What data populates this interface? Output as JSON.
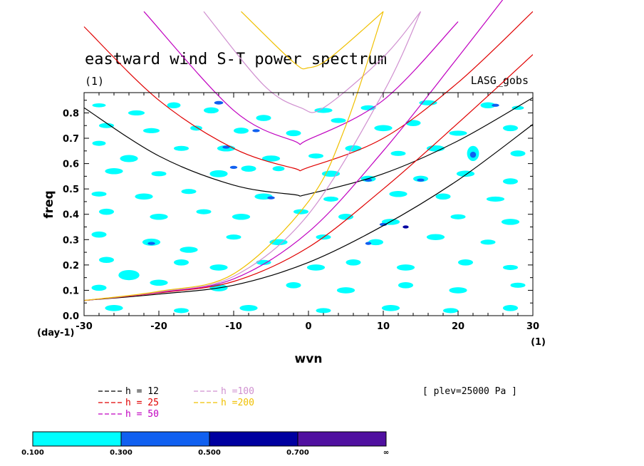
{
  "chart_data": {
    "type": "contour",
    "title": "eastward wind S-T power spectrum",
    "subtitle": "(1)",
    "source_label": "LASG_gobs",
    "level_label": "[ plev=25000 Pa ]",
    "xlabel": "wvn",
    "ylabel": "freq",
    "x_unit_label": "(1)",
    "y_unit_label": "(day-1)",
    "xlim": [
      -30,
      30
    ],
    "ylim": [
      0,
      0.88
    ],
    "x_ticks": [
      -30,
      -20,
      -10,
      0,
      10,
      20,
      30
    ],
    "y_ticks": [
      0.0,
      0.1,
      0.2,
      0.3,
      0.4,
      0.5,
      0.6,
      0.7,
      0.8
    ],
    "x_tick_labels": [
      "-30",
      "-20",
      "-10",
      "0",
      "10",
      "20",
      "30"
    ],
    "y_tick_labels": [
      "0.0",
      "0.1",
      "0.2",
      "0.3",
      "0.4",
      "0.5",
      "0.6",
      "0.7",
      "0.8"
    ],
    "dispersion_curves": [
      {
        "name": "h = 12",
        "h": 12,
        "color": "#000000",
        "points": {
          "kelvin": [
            [
              -30,
              0.06
            ],
            [
              -20,
              0.085
            ],
            [
              -10,
              0.12
            ],
            [
              0,
              0.21
            ],
            [
              10,
              0.355
            ],
            [
              20,
              0.535
            ],
            [
              30,
              0.755
            ]
          ],
          "wig": [
            [
              -30,
              0.82
            ],
            [
              -20,
              0.63
            ],
            [
              -10,
              0.515
            ],
            [
              -2,
              0.478
            ],
            [
              0,
              0.48
            ],
            [
              10,
              0.56
            ],
            [
              20,
              0.69
            ],
            [
              30,
              0.86
            ]
          ]
        }
      },
      {
        "name": "h = 25",
        "h": 25,
        "color": "#e00000",
        "points": {
          "kelvin": [
            [
              -30,
              0.06
            ],
            [
              -20,
              0.09
            ],
            [
              -10,
              0.135
            ],
            [
              0,
              0.27
            ],
            [
              10,
              0.5
            ],
            [
              20,
              0.76
            ],
            [
              30,
              1.03
            ]
          ],
          "wig": [
            [
              -30,
              1.14
            ],
            [
              -20,
              0.85
            ],
            [
              -10,
              0.66
            ],
            [
              -2,
              0.582
            ],
            [
              0,
              0.585
            ],
            [
              10,
              0.7
            ],
            [
              20,
              0.92
            ],
            [
              30,
              1.2
            ]
          ]
        }
      },
      {
        "name": "h = 50",
        "h": 50,
        "color": "#c000c0",
        "points": {
          "kelvin": [
            [
              -30,
              0.06
            ],
            [
              -20,
              0.092
            ],
            [
              -10,
              0.145
            ],
            [
              0,
              0.33
            ],
            [
              10,
              0.65
            ],
            [
              20,
              1.02
            ],
            [
              30,
              1.4
            ]
          ],
          "wig": [
            [
              -22,
              1.2
            ],
            [
              -10,
              0.81
            ],
            [
              -2,
              0.69
            ],
            [
              0,
              0.695
            ],
            [
              10,
              0.85
            ],
            [
              20,
              1.16
            ]
          ]
        }
      },
      {
        "name": "h =100",
        "h": 100,
        "color": "#d090d0",
        "points": {
          "kelvin": [
            [
              -30,
              0.06
            ],
            [
              -20,
              0.094
            ],
            [
              -10,
              0.155
            ],
            [
              0,
              0.4
            ],
            [
              10,
              0.88
            ],
            [
              15,
              1.2
            ]
          ],
          "wig": [
            [
              -14,
              1.2
            ],
            [
              -6,
              0.91
            ],
            [
              -1,
              0.82
            ],
            [
              2,
              0.82
            ],
            [
              10,
              1.02
            ],
            [
              15,
              1.2
            ]
          ]
        }
      },
      {
        "name": "h =200",
        "h": 200,
        "color": "#f0c000",
        "points": {
          "kelvin": [
            [
              -30,
              0.06
            ],
            [
              -20,
              0.096
            ],
            [
              -10,
              0.165
            ],
            [
              0,
              0.45
            ],
            [
              5,
              0.75
            ],
            [
              10,
              1.2
            ]
          ],
          "wig": [
            [
              -9,
              1.2
            ],
            [
              -2,
              1.0
            ],
            [
              0,
              0.978
            ],
            [
              3,
              1.02
            ],
            [
              10,
              1.2
            ]
          ]
        }
      }
    ],
    "legend": [
      {
        "label": "h = 12",
        "color": "#000000"
      },
      {
        "label": "h = 25",
        "color": "#e00000"
      },
      {
        "label": "h = 50",
        "color": "#c000c0"
      },
      {
        "label": "h =100",
        "color": "#d090d0"
      },
      {
        "label": "h =200",
        "color": "#f0c000"
      }
    ],
    "contour_levels": [
      {
        "from": "0.100",
        "to": "0.300",
        "color": "#00ffff"
      },
      {
        "from": "0.300",
        "to": "0.500",
        "color": "#1060f0"
      },
      {
        "from": "0.500",
        "to": "0.700",
        "color": "#0000a0"
      },
      {
        "from": "0.700",
        "to": "∞",
        "color": "#5010a0"
      }
    ],
    "colorbar_labels": [
      "0.100",
      "0.300",
      "0.500",
      "0.700",
      "∞"
    ],
    "patches": [
      {
        "x": -28,
        "y": 0.83,
        "a": 0.9,
        "b": 0.008,
        "l": 0
      },
      {
        "x": -23,
        "y": 0.8,
        "a": 1.1,
        "b": 0.01,
        "l": 0
      },
      {
        "x": -18,
        "y": 0.83,
        "a": 0.9,
        "b": 0.012,
        "l": 0
      },
      {
        "x": -13,
        "y": 0.81,
        "a": 1.0,
        "b": 0.012,
        "l": 0
      },
      {
        "x": -12,
        "y": 0.84,
        "a": 0.6,
        "b": 0.007,
        "l": 1
      },
      {
        "x": -6,
        "y": 0.78,
        "a": 1.0,
        "b": 0.012,
        "l": 0
      },
      {
        "x": 2,
        "y": 0.81,
        "a": 1.2,
        "b": 0.01,
        "l": 0
      },
      {
        "x": 8,
        "y": 0.82,
        "a": 1.0,
        "b": 0.01,
        "l": 0
      },
      {
        "x": 16,
        "y": 0.84,
        "a": 1.2,
        "b": 0.01,
        "l": 0
      },
      {
        "x": 24,
        "y": 0.83,
        "a": 1.0,
        "b": 0.012,
        "l": 0
      },
      {
        "x": 25,
        "y": 0.83,
        "a": 0.5,
        "b": 0.006,
        "l": 1
      },
      {
        "x": 28,
        "y": 0.82,
        "a": 0.8,
        "b": 0.008,
        "l": 0
      },
      {
        "x": -27,
        "y": 0.75,
        "a": 1.0,
        "b": 0.01,
        "l": 0
      },
      {
        "x": -21,
        "y": 0.73,
        "a": 1.1,
        "b": 0.01,
        "l": 0
      },
      {
        "x": -15,
        "y": 0.74,
        "a": 0.8,
        "b": 0.01,
        "l": 0
      },
      {
        "x": -9,
        "y": 0.73,
        "a": 1.0,
        "b": 0.012,
        "l": 0
      },
      {
        "x": -7,
        "y": 0.73,
        "a": 0.5,
        "b": 0.006,
        "l": 1
      },
      {
        "x": -2,
        "y": 0.72,
        "a": 1.0,
        "b": 0.012,
        "l": 0
      },
      {
        "x": 4,
        "y": 0.77,
        "a": 1.0,
        "b": 0.01,
        "l": 0
      },
      {
        "x": 10,
        "y": 0.74,
        "a": 1.2,
        "b": 0.012,
        "l": 0
      },
      {
        "x": 14,
        "y": 0.76,
        "a": 1.0,
        "b": 0.012,
        "l": 0
      },
      {
        "x": 20,
        "y": 0.72,
        "a": 1.2,
        "b": 0.01,
        "l": 0
      },
      {
        "x": 27,
        "y": 0.74,
        "a": 1.0,
        "b": 0.012,
        "l": 0
      },
      {
        "x": -28,
        "y": 0.68,
        "a": 0.9,
        "b": 0.01,
        "l": 0
      },
      {
        "x": -24,
        "y": 0.62,
        "a": 1.2,
        "b": 0.014,
        "l": 0
      },
      {
        "x": -17,
        "y": 0.66,
        "a": 1.0,
        "b": 0.01,
        "l": 0
      },
      {
        "x": -11,
        "y": 0.66,
        "a": 1.2,
        "b": 0.012,
        "l": 0
      },
      {
        "x": -11,
        "y": 0.665,
        "a": 0.5,
        "b": 0.006,
        "l": 1
      },
      {
        "x": -5,
        "y": 0.62,
        "a": 1.2,
        "b": 0.012,
        "l": 0
      },
      {
        "x": 1,
        "y": 0.63,
        "a": 1.0,
        "b": 0.01,
        "l": 0
      },
      {
        "x": 6,
        "y": 0.66,
        "a": 1.1,
        "b": 0.012,
        "l": 0
      },
      {
        "x": 12,
        "y": 0.64,
        "a": 1.0,
        "b": 0.01,
        "l": 0
      },
      {
        "x": 17,
        "y": 0.66,
        "a": 1.2,
        "b": 0.012,
        "l": 0
      },
      {
        "x": 22,
        "y": 0.64,
        "a": 0.8,
        "b": 0.03,
        "l": 0
      },
      {
        "x": 22,
        "y": 0.635,
        "a": 0.4,
        "b": 0.012,
        "l": 1
      },
      {
        "x": 28,
        "y": 0.64,
        "a": 1.0,
        "b": 0.012,
        "l": 0
      },
      {
        "x": -26,
        "y": 0.57,
        "a": 1.2,
        "b": 0.012,
        "l": 0
      },
      {
        "x": -20,
        "y": 0.56,
        "a": 1.0,
        "b": 0.01,
        "l": 0
      },
      {
        "x": -12,
        "y": 0.56,
        "a": 1.2,
        "b": 0.014,
        "l": 0
      },
      {
        "x": -10,
        "y": 0.585,
        "a": 0.5,
        "b": 0.006,
        "l": 1
      },
      {
        "x": -8,
        "y": 0.58,
        "a": 1.0,
        "b": 0.012,
        "l": 0
      },
      {
        "x": -4,
        "y": 0.58,
        "a": 0.8,
        "b": 0.01,
        "l": 0
      },
      {
        "x": 3,
        "y": 0.56,
        "a": 1.2,
        "b": 0.012,
        "l": 0
      },
      {
        "x": 8,
        "y": 0.54,
        "a": 1.0,
        "b": 0.012,
        "l": 0
      },
      {
        "x": 8,
        "y": 0.535,
        "a": 0.5,
        "b": 0.006,
        "l": 1
      },
      {
        "x": 15,
        "y": 0.54,
        "a": 1.0,
        "b": 0.012,
        "l": 0
      },
      {
        "x": 15,
        "y": 0.535,
        "a": 0.5,
        "b": 0.006,
        "l": 1
      },
      {
        "x": 21,
        "y": 0.56,
        "a": 1.2,
        "b": 0.012,
        "l": 0
      },
      {
        "x": 27,
        "y": 0.53,
        "a": 1.0,
        "b": 0.012,
        "l": 0
      },
      {
        "x": -28,
        "y": 0.48,
        "a": 1.0,
        "b": 0.01,
        "l": 0
      },
      {
        "x": -22,
        "y": 0.47,
        "a": 1.2,
        "b": 0.012,
        "l": 0
      },
      {
        "x": -16,
        "y": 0.49,
        "a": 1.0,
        "b": 0.01,
        "l": 0
      },
      {
        "x": -6,
        "y": 0.47,
        "a": 1.2,
        "b": 0.012,
        "l": 0
      },
      {
        "x": -5,
        "y": 0.465,
        "a": 0.5,
        "b": 0.006,
        "l": 1
      },
      {
        "x": 3,
        "y": 0.46,
        "a": 1.0,
        "b": 0.01,
        "l": 0
      },
      {
        "x": 12,
        "y": 0.48,
        "a": 1.2,
        "b": 0.012,
        "l": 0
      },
      {
        "x": 18,
        "y": 0.47,
        "a": 1.0,
        "b": 0.012,
        "l": 0
      },
      {
        "x": 25,
        "y": 0.46,
        "a": 1.2,
        "b": 0.01,
        "l": 0
      },
      {
        "x": -27,
        "y": 0.41,
        "a": 1.0,
        "b": 0.012,
        "l": 0
      },
      {
        "x": -20,
        "y": 0.39,
        "a": 1.2,
        "b": 0.012,
        "l": 0
      },
      {
        "x": -14,
        "y": 0.41,
        "a": 1.0,
        "b": 0.01,
        "l": 0
      },
      {
        "x": -9,
        "y": 0.39,
        "a": 1.2,
        "b": 0.012,
        "l": 0
      },
      {
        "x": -1,
        "y": 0.41,
        "a": 1.0,
        "b": 0.01,
        "l": 0
      },
      {
        "x": 5,
        "y": 0.39,
        "a": 1.0,
        "b": 0.012,
        "l": 0
      },
      {
        "x": 11,
        "y": 0.37,
        "a": 1.2,
        "b": 0.012,
        "l": 0
      },
      {
        "x": 10,
        "y": 0.36,
        "a": 0.5,
        "b": 0.006,
        "l": 1
      },
      {
        "x": 13,
        "y": 0.35,
        "a": 0.4,
        "b": 0.006,
        "l": 2
      },
      {
        "x": 20,
        "y": 0.39,
        "a": 1.0,
        "b": 0.01,
        "l": 0
      },
      {
        "x": 27,
        "y": 0.37,
        "a": 1.2,
        "b": 0.012,
        "l": 0
      },
      {
        "x": -28,
        "y": 0.32,
        "a": 1.0,
        "b": 0.012,
        "l": 0
      },
      {
        "x": -21,
        "y": 0.29,
        "a": 1.2,
        "b": 0.014,
        "l": 0
      },
      {
        "x": -21,
        "y": 0.285,
        "a": 0.5,
        "b": 0.006,
        "l": 1
      },
      {
        "x": -16,
        "y": 0.26,
        "a": 1.2,
        "b": 0.012,
        "l": 0
      },
      {
        "x": -10,
        "y": 0.31,
        "a": 1.0,
        "b": 0.01,
        "l": 0
      },
      {
        "x": -4,
        "y": 0.29,
        "a": 1.2,
        "b": 0.012,
        "l": 0
      },
      {
        "x": 2,
        "y": 0.31,
        "a": 1.0,
        "b": 0.01,
        "l": 0
      },
      {
        "x": 9,
        "y": 0.29,
        "a": 1.0,
        "b": 0.012,
        "l": 0
      },
      {
        "x": 8,
        "y": 0.285,
        "a": 0.4,
        "b": 0.006,
        "l": 1
      },
      {
        "x": 17,
        "y": 0.31,
        "a": 1.2,
        "b": 0.012,
        "l": 0
      },
      {
        "x": 24,
        "y": 0.29,
        "a": 1.0,
        "b": 0.01,
        "l": 0
      },
      {
        "x": -27,
        "y": 0.22,
        "a": 1.0,
        "b": 0.012,
        "l": 0
      },
      {
        "x": -24,
        "y": 0.16,
        "a": 1.4,
        "b": 0.02,
        "l": 0
      },
      {
        "x": -17,
        "y": 0.21,
        "a": 1.0,
        "b": 0.012,
        "l": 0
      },
      {
        "x": -12,
        "y": 0.19,
        "a": 1.2,
        "b": 0.012,
        "l": 0
      },
      {
        "x": -6,
        "y": 0.21,
        "a": 1.0,
        "b": 0.01,
        "l": 0
      },
      {
        "x": 1,
        "y": 0.19,
        "a": 1.2,
        "b": 0.012,
        "l": 0
      },
      {
        "x": 6,
        "y": 0.21,
        "a": 1.0,
        "b": 0.012,
        "l": 0
      },
      {
        "x": 13,
        "y": 0.19,
        "a": 1.2,
        "b": 0.012,
        "l": 0
      },
      {
        "x": 21,
        "y": 0.21,
        "a": 1.0,
        "b": 0.012,
        "l": 0
      },
      {
        "x": 27,
        "y": 0.19,
        "a": 1.0,
        "b": 0.01,
        "l": 0
      },
      {
        "x": -28,
        "y": 0.11,
        "a": 1.0,
        "b": 0.012,
        "l": 0
      },
      {
        "x": -20,
        "y": 0.13,
        "a": 1.2,
        "b": 0.012,
        "l": 0
      },
      {
        "x": -12,
        "y": 0.11,
        "a": 1.2,
        "b": 0.014,
        "l": 0
      },
      {
        "x": -2,
        "y": 0.12,
        "a": 1.0,
        "b": 0.012,
        "l": 0
      },
      {
        "x": 5,
        "y": 0.1,
        "a": 1.2,
        "b": 0.012,
        "l": 0
      },
      {
        "x": 13,
        "y": 0.12,
        "a": 1.0,
        "b": 0.012,
        "l": 0
      },
      {
        "x": 20,
        "y": 0.1,
        "a": 1.2,
        "b": 0.012,
        "l": 0
      },
      {
        "x": 28,
        "y": 0.12,
        "a": 1.0,
        "b": 0.01,
        "l": 0
      },
      {
        "x": -26,
        "y": 0.03,
        "a": 1.2,
        "b": 0.012,
        "l": 0
      },
      {
        "x": -17,
        "y": 0.02,
        "a": 1.0,
        "b": 0.01,
        "l": 0
      },
      {
        "x": -8,
        "y": 0.03,
        "a": 1.2,
        "b": 0.012,
        "l": 0
      },
      {
        "x": 2,
        "y": 0.02,
        "a": 1.0,
        "b": 0.01,
        "l": 0
      },
      {
        "x": 11,
        "y": 0.03,
        "a": 1.2,
        "b": 0.012,
        "l": 0
      },
      {
        "x": 19,
        "y": 0.02,
        "a": 1.0,
        "b": 0.01,
        "l": 0
      },
      {
        "x": 27,
        "y": 0.03,
        "a": 1.0,
        "b": 0.012,
        "l": 0
      }
    ]
  }
}
